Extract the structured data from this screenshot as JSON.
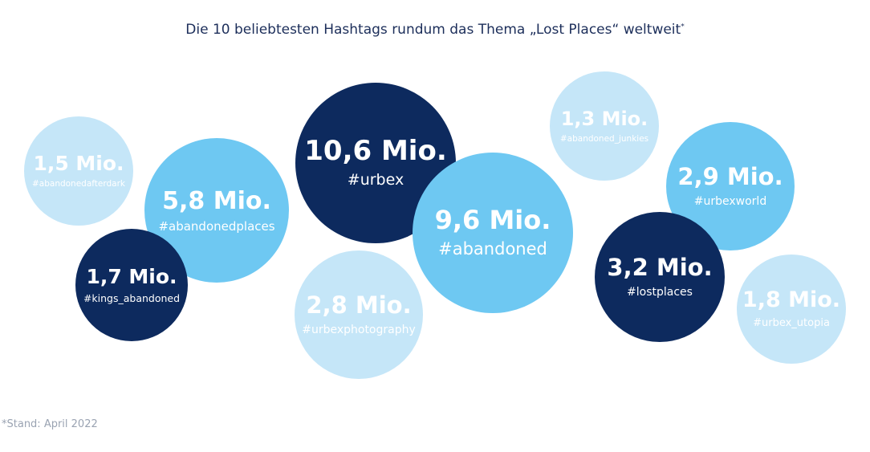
{
  "title": "Die 10 beliebtesten Hashtags rundum das Thema „Lost Places“ weltweit",
  "title_mark": "*",
  "footnote": "*Stand: April 2022",
  "colors": {
    "dark": "#0d2a5e",
    "medium": "#6ec8f2",
    "light": "#c5e6f8",
    "text": "#1c2e5a"
  },
  "chart_data": {
    "type": "bubble",
    "title": "Die 10 beliebtesten Hashtags rundum das Thema „Lost Places“ weltweit",
    "unit": "Mio.",
    "items": [
      {
        "hashtag": "#abandonedafterdark",
        "value": 1.5,
        "label": "1,5 Mio.",
        "shade": "light"
      },
      {
        "hashtag": "#abandonedplaces",
        "value": 5.8,
        "label": "5,8 Mio.",
        "shade": "medium"
      },
      {
        "hashtag": "#kings_abandoned",
        "value": 1.7,
        "label": "1,7 Mio.",
        "shade": "dark"
      },
      {
        "hashtag": "#urbex",
        "value": 10.6,
        "label": "10,6 Mio.",
        "shade": "dark"
      },
      {
        "hashtag": "#urbexphotography",
        "value": 2.8,
        "label": "2,8 Mio.",
        "shade": "light"
      },
      {
        "hashtag": "#abandoned",
        "value": 9.6,
        "label": "9,6 Mio.",
        "shade": "medium"
      },
      {
        "hashtag": "#abandoned_junkies",
        "value": 1.3,
        "label": "1,3 Mio.",
        "shade": "light"
      },
      {
        "hashtag": "#urbexworld",
        "value": 2.9,
        "label": "2,9 Mio.",
        "shade": "medium"
      },
      {
        "hashtag": "#lostplaces",
        "value": 3.2,
        "label": "3,2 Mio.",
        "shade": "dark"
      },
      {
        "hashtag": "#urbex_utopia",
        "value": 1.8,
        "label": "1,8 Mio.",
        "shade": "light"
      }
    ]
  }
}
